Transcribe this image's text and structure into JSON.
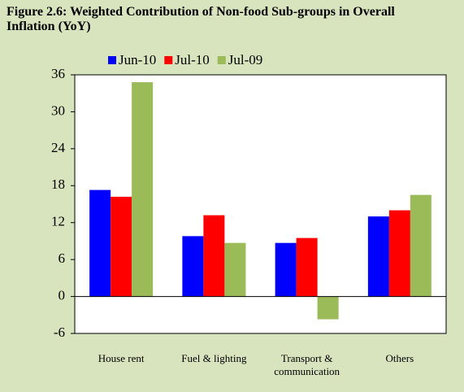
{
  "chart_data": {
    "type": "bar",
    "title": "Figure 2.6: Weighted Contribution of Non-food Sub-groups in Overall Inflation (YoY)",
    "categories": [
      "House rent",
      "Fuel & lighting",
      "Transport & communication",
      "Others"
    ],
    "series": [
      {
        "name": "Jun-10",
        "color": "#0000ff",
        "values": [
          17.3,
          9.8,
          8.7,
          13.0
        ]
      },
      {
        "name": "Jul-10",
        "color": "#ff0000",
        "values": [
          16.2,
          13.2,
          9.5,
          14.0
        ]
      },
      {
        "name": "Jul-09",
        "color": "#9bbb59",
        "values": [
          34.8,
          8.7,
          -3.7,
          16.5
        ]
      }
    ],
    "ylim": [
      -6,
      36
    ],
    "yticks": [
      -6,
      0,
      6,
      12,
      18,
      24,
      30,
      36
    ],
    "legend": "top"
  }
}
